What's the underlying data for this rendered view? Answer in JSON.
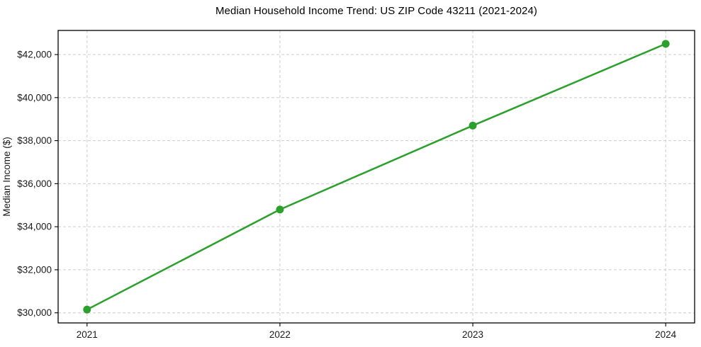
{
  "figure": {
    "background": "#ffffff"
  },
  "chart_data": {
    "type": "line",
    "title": "Median Household Income Trend: US ZIP Code 43211 (2021-2024)",
    "xlabel": "",
    "ylabel": "Median Income ($)",
    "categories": [
      "2021",
      "2022",
      "2023",
      "2024"
    ],
    "x": [
      2021,
      2022,
      2023,
      2024
    ],
    "series": [
      {
        "name": "Median Household Income",
        "values": [
          30150,
          34800,
          38700,
          42500
        ],
        "color": "#2ca02c",
        "marker": "circle"
      }
    ],
    "xlim": [
      2020.85,
      2024.15
    ],
    "ylim": [
      29530,
      43120
    ],
    "xticks": [
      2021,
      2022,
      2023,
      2024
    ],
    "xtick_labels": [
      "2021",
      "2022",
      "2023",
      "2024"
    ],
    "yticks": [
      30000,
      32000,
      34000,
      36000,
      38000,
      40000,
      42000
    ],
    "ytick_labels": [
      "$30,000",
      "$32,000",
      "$34,000",
      "$36,000",
      "$38,000",
      "$40,000",
      "$42,000"
    ],
    "grid": true,
    "grid_style": "dashed",
    "grid_color": "#cccccc",
    "axis_color": "#000000",
    "tick_label_color": "#1a1a1a",
    "title_color": "#000000",
    "line_width": 2.5,
    "marker_size": 11,
    "legend": "none"
  }
}
